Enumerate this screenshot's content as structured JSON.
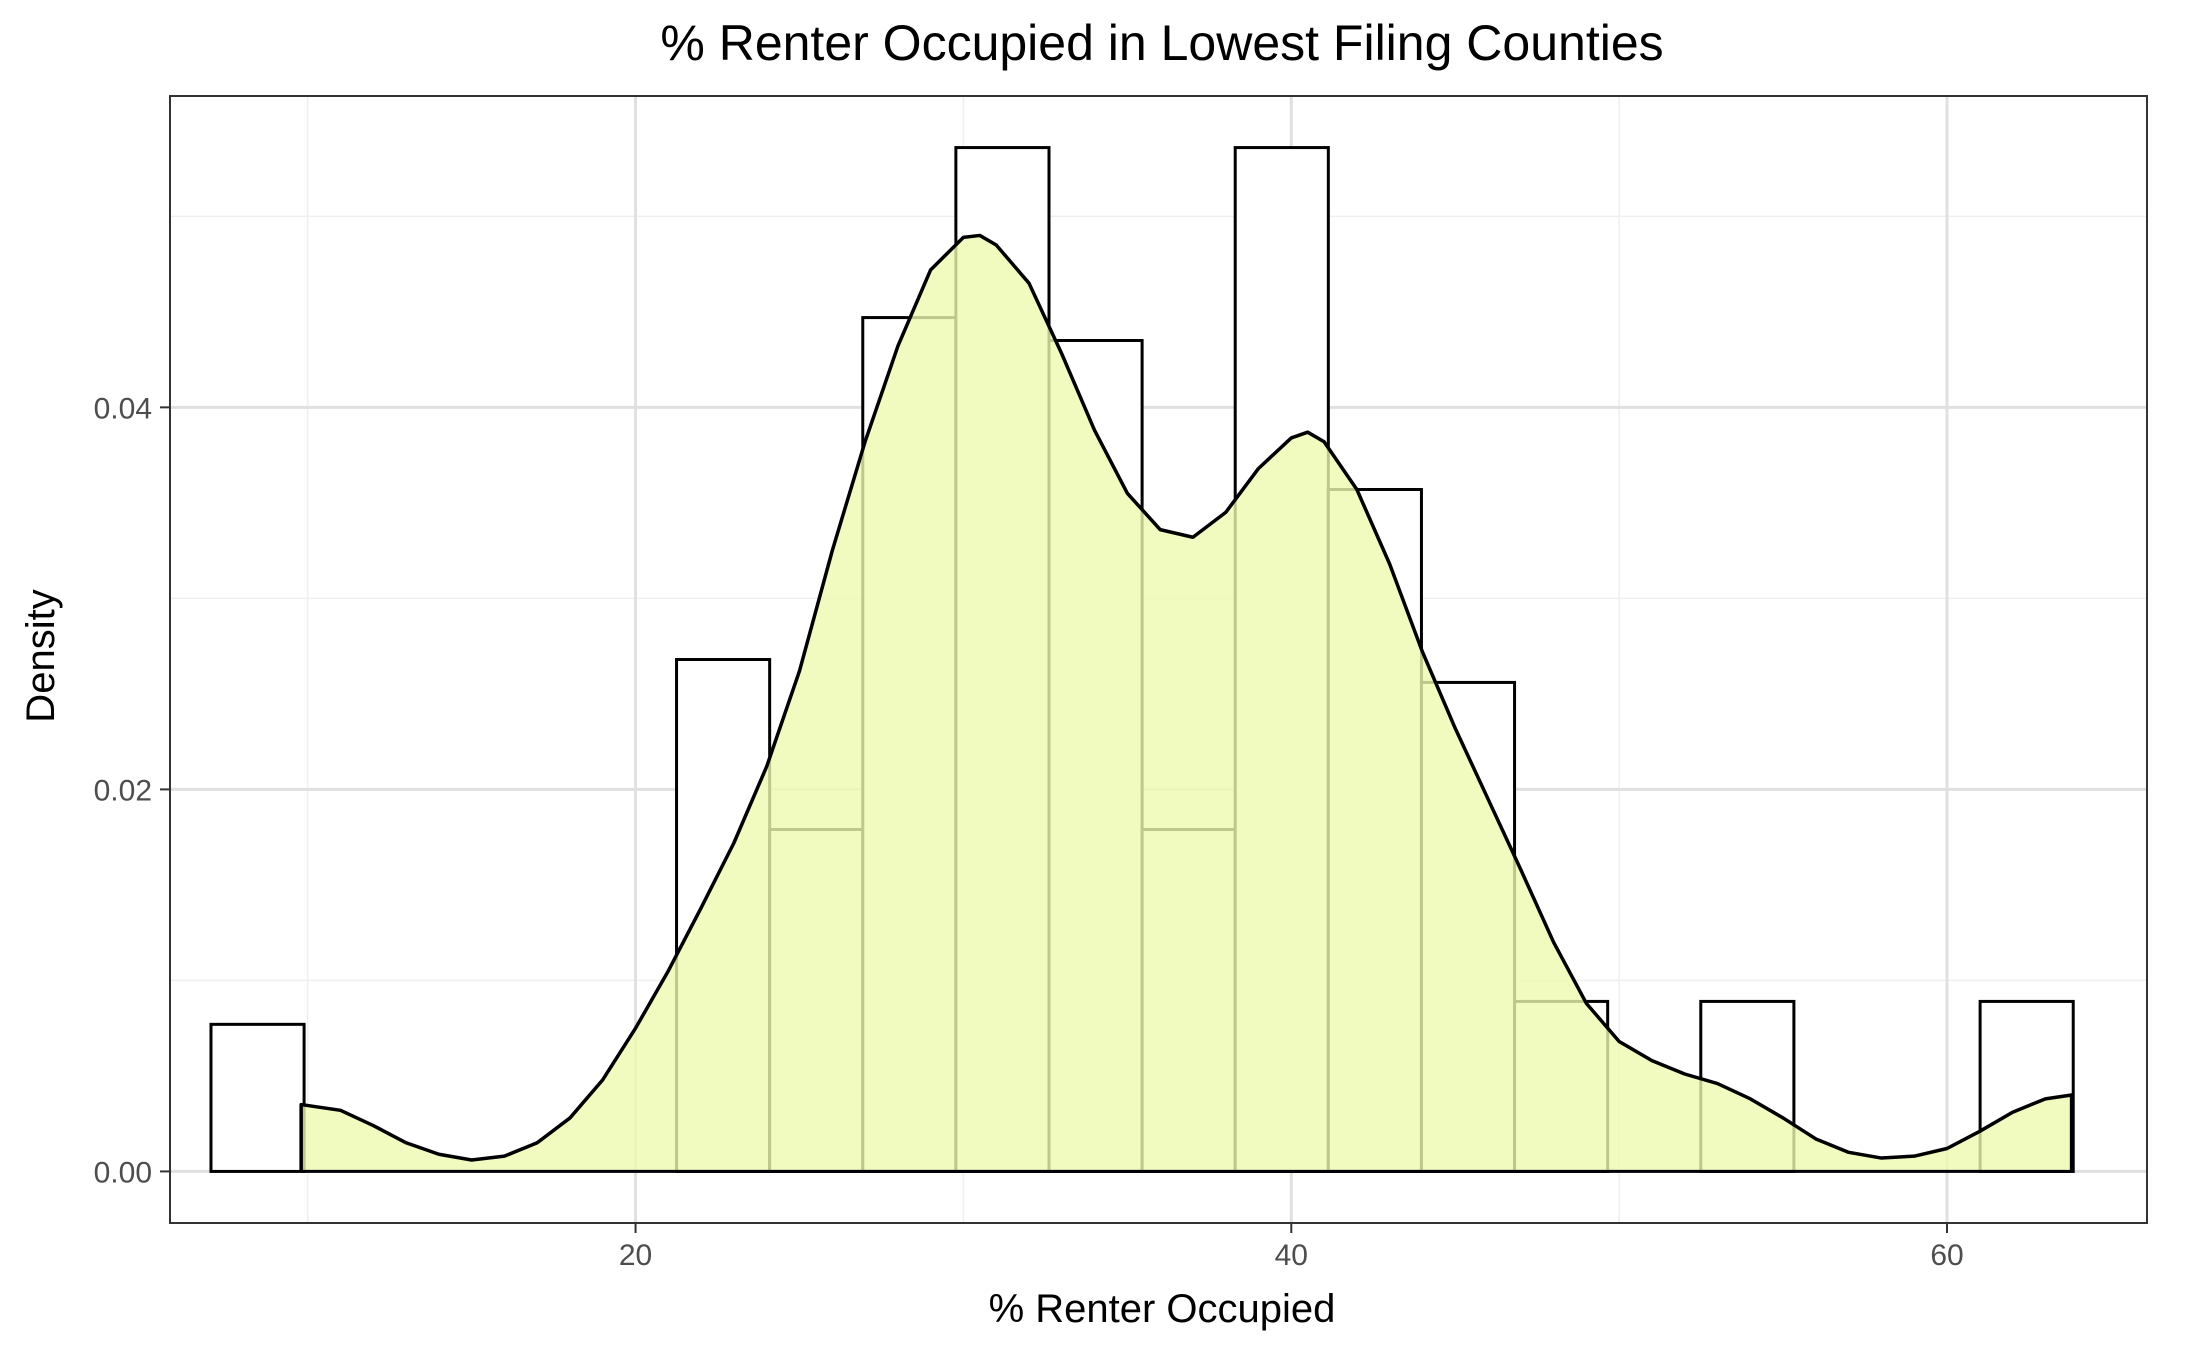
{
  "chart_data": {
    "type": "histogram",
    "title": "% Renter Occupied in Lowest Filing Counties",
    "xlabel": "% Renter Occupied",
    "ylabel": "Density",
    "xlim": [
      5.8,
      66.1
    ],
    "ylim": [
      -0.0027,
      0.0563
    ],
    "x_ticks": [
      20,
      40,
      60
    ],
    "x_tick_labels": [
      "20",
      "40",
      "60"
    ],
    "y_ticks": [
      0.0,
      0.02,
      0.04
    ],
    "y_tick_labels": [
      "0.00",
      "0.02",
      "0.04"
    ],
    "grid": true,
    "bins": [
      {
        "x0": 7.05,
        "x1": 9.89,
        "density": 0.0077
      },
      {
        "x0": 9.89,
        "x1": 12.73,
        "density": 0.0
      },
      {
        "x0": 12.73,
        "x1": 15.57,
        "density": 0.0
      },
      {
        "x0": 15.57,
        "x1": 18.41,
        "density": 0.0
      },
      {
        "x0": 18.41,
        "x1": 21.25,
        "density": 0.0
      },
      {
        "x0": 21.25,
        "x1": 24.09,
        "density": 0.0268
      },
      {
        "x0": 24.09,
        "x1": 26.93,
        "density": 0.0179
      },
      {
        "x0": 26.93,
        "x1": 29.77,
        "density": 0.0447
      },
      {
        "x0": 29.77,
        "x1": 32.61,
        "density": 0.0536
      },
      {
        "x0": 32.61,
        "x1": 35.45,
        "density": 0.0435
      },
      {
        "x0": 35.45,
        "x1": 38.29,
        "density": 0.0179
      },
      {
        "x0": 38.29,
        "x1": 41.13,
        "density": 0.0536
      },
      {
        "x0": 41.13,
        "x1": 43.97,
        "density": 0.0357
      },
      {
        "x0": 43.97,
        "x1": 46.81,
        "density": 0.0256
      },
      {
        "x0": 46.81,
        "x1": 49.65,
        "density": 0.0089
      },
      {
        "x0": 49.65,
        "x1": 52.49,
        "density": 0.0
      },
      {
        "x0": 52.49,
        "x1": 55.33,
        "density": 0.0089
      },
      {
        "x0": 55.33,
        "x1": 58.17,
        "density": 0.0
      },
      {
        "x0": 58.17,
        "x1": 61.01,
        "density": 0.0
      },
      {
        "x0": 61.01,
        "x1": 63.85,
        "density": 0.0089
      }
    ],
    "density_curve": {
      "x": [
        9.8,
        11,
        12,
        13,
        14,
        15,
        16,
        17,
        18,
        19,
        20,
        21,
        22,
        23,
        24,
        25,
        26,
        27,
        28,
        29,
        30,
        30.5,
        31,
        32,
        33,
        34,
        35,
        36,
        37,
        38,
        39,
        40,
        40.5,
        41,
        42,
        43,
        44,
        45,
        46,
        47,
        48,
        49,
        50,
        51,
        52,
        53,
        54,
        55,
        56,
        57,
        58,
        59,
        60,
        61,
        62,
        63,
        63.8
      ],
      "y": [
        0.0035,
        0.0032,
        0.0024,
        0.0015,
        0.0009,
        0.0006,
        0.0008,
        0.0015,
        0.0028,
        0.0048,
        0.0075,
        0.0105,
        0.0138,
        0.0172,
        0.0212,
        0.0262,
        0.0325,
        0.0382,
        0.0432,
        0.0472,
        0.0489,
        0.049,
        0.0485,
        0.0465,
        0.0428,
        0.0388,
        0.0355,
        0.0336,
        0.0332,
        0.0345,
        0.0368,
        0.0384,
        0.0387,
        0.0382,
        0.0357,
        0.0318,
        0.0272,
        0.0232,
        0.0195,
        0.0158,
        0.012,
        0.0088,
        0.0068,
        0.0058,
        0.0051,
        0.0046,
        0.0038,
        0.0028,
        0.0017,
        0.001,
        0.0007,
        0.0008,
        0.0012,
        0.0021,
        0.0031,
        0.0038,
        0.004
      ]
    },
    "colors": {
      "density_fill": "#eefab0",
      "density_fill_opacity": 0.8,
      "bar_outline": "#000000",
      "bar_fill": "#ffffff",
      "grid_major": "#e0e0e0",
      "grid_minor": "#efefef",
      "panel_border": "#333333"
    }
  }
}
